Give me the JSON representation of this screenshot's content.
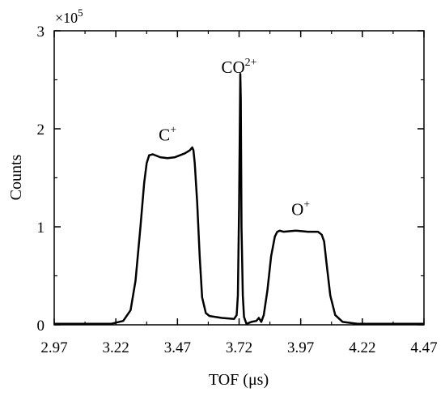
{
  "chart_data": {
    "type": "line",
    "xlabel": "TOF (μs)",
    "ylabel": "Counts",
    "xlim": [
      2.97,
      4.47
    ],
    "ylim": [
      0,
      3
    ],
    "y_multiplier": "×10",
    "y_multiplier_exponent": "5",
    "x_ticks": [
      "2.97",
      "3.22",
      "3.47",
      "3.72",
      "3.97",
      "4.22",
      "4.47"
    ],
    "y_ticks": [
      "0",
      "1",
      "2",
      "3"
    ],
    "grid": false,
    "legend": "none",
    "line_color": "#000000",
    "annotations": [
      {
        "base": "C",
        "sup": "+",
        "x": 3.43,
        "y": 1.88
      },
      {
        "base": "CO",
        "sup": "2+",
        "x": 3.72,
        "y": 2.57
      },
      {
        "base": "O",
        "sup": "+",
        "x": 3.97,
        "y": 1.12
      }
    ],
    "series": [
      {
        "x": [
          2.97,
          3.2,
          3.25,
          3.28,
          3.3,
          3.32,
          3.335,
          3.345,
          3.355,
          3.37,
          3.4,
          3.43,
          3.46,
          3.48,
          3.5,
          3.52,
          3.53,
          3.535,
          3.54,
          3.55,
          3.56,
          3.57,
          3.585,
          3.6,
          3.65,
          3.7,
          3.71,
          3.715,
          3.72,
          3.725,
          3.727,
          3.73,
          3.735,
          3.74,
          3.75,
          3.77,
          3.79,
          3.8,
          3.81,
          3.82,
          3.835,
          3.85,
          3.865,
          3.875,
          3.885,
          3.9,
          3.95,
          4.0,
          4.04,
          4.055,
          4.065,
          4.075,
          4.09,
          4.11,
          4.14,
          4.2,
          4.47
        ],
        "y": [
          0.01,
          0.01,
          0.04,
          0.15,
          0.45,
          1.0,
          1.45,
          1.65,
          1.73,
          1.74,
          1.71,
          1.7,
          1.71,
          1.73,
          1.75,
          1.78,
          1.81,
          1.78,
          1.65,
          1.25,
          0.7,
          0.28,
          0.12,
          0.09,
          0.07,
          0.06,
          0.1,
          0.3,
          1.2,
          2.56,
          2.3,
          1.0,
          0.3,
          0.08,
          0.01,
          0.03,
          0.04,
          0.07,
          0.03,
          0.1,
          0.35,
          0.7,
          0.9,
          0.95,
          0.96,
          0.95,
          0.96,
          0.95,
          0.95,
          0.92,
          0.85,
          0.62,
          0.3,
          0.1,
          0.03,
          0.01,
          0.01
        ]
      }
    ]
  }
}
